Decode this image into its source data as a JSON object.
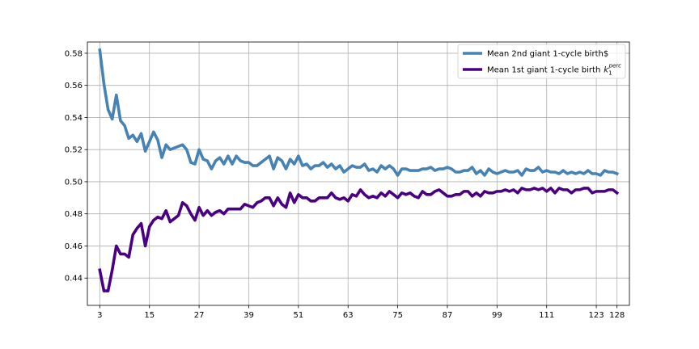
{
  "chart_data": {
    "type": "line",
    "title": "",
    "xlabel": "",
    "ylabel": "",
    "xlim": [
      0,
      131
    ],
    "ylim": [
      0.423,
      0.587
    ],
    "grid": true,
    "legend_placement": "top-right",
    "x_ticks": [
      3,
      15,
      27,
      39,
      51,
      63,
      75,
      87,
      99,
      111,
      123,
      128
    ],
    "y_ticks": [
      0.44,
      0.46,
      0.48,
      0.5,
      0.52,
      0.54,
      0.56,
      0.58
    ],
    "x": [
      3,
      4,
      5,
      6,
      7,
      8,
      9,
      10,
      11,
      12,
      13,
      14,
      15,
      16,
      17,
      18,
      19,
      20,
      21,
      22,
      23,
      24,
      25,
      26,
      27,
      28,
      29,
      30,
      31,
      32,
      33,
      34,
      35,
      36,
      37,
      38,
      39,
      40,
      41,
      42,
      43,
      44,
      45,
      46,
      47,
      48,
      49,
      50,
      51,
      52,
      53,
      54,
      55,
      56,
      57,
      58,
      59,
      60,
      61,
      62,
      63,
      64,
      65,
      66,
      67,
      68,
      69,
      70,
      71,
      72,
      73,
      74,
      75,
      76,
      77,
      78,
      79,
      80,
      81,
      82,
      83,
      84,
      85,
      86,
      87,
      88,
      89,
      90,
      91,
      92,
      93,
      94,
      95,
      96,
      97,
      98,
      99,
      100,
      101,
      102,
      103,
      104,
      105,
      106,
      107,
      108,
      109,
      110,
      111,
      112,
      113,
      114,
      115,
      116,
      117,
      118,
      119,
      120,
      121,
      122,
      123,
      124,
      125,
      126,
      127,
      128
    ],
    "series": [
      {
        "name": "Mean 2nd giant 1-cycle birth$",
        "color": "#4682b4",
        "values": [
          0.582,
          0.561,
          0.545,
          0.539,
          0.554,
          0.538,
          0.535,
          0.527,
          0.529,
          0.525,
          0.53,
          0.519,
          0.525,
          0.531,
          0.526,
          0.515,
          0.523,
          0.52,
          0.521,
          0.522,
          0.523,
          0.52,
          0.512,
          0.511,
          0.52,
          0.514,
          0.513,
          0.508,
          0.513,
          0.515,
          0.511,
          0.516,
          0.511,
          0.516,
          0.513,
          0.512,
          0.512,
          0.51,
          0.51,
          0.512,
          0.514,
          0.516,
          0.508,
          0.515,
          0.513,
          0.508,
          0.514,
          0.511,
          0.516,
          0.51,
          0.511,
          0.508,
          0.51,
          0.51,
          0.512,
          0.509,
          0.511,
          0.508,
          0.51,
          0.506,
          0.508,
          0.51,
          0.509,
          0.509,
          0.511,
          0.507,
          0.508,
          0.506,
          0.51,
          0.508,
          0.51,
          0.508,
          0.504,
          0.508,
          0.508,
          0.507,
          0.507,
          0.507,
          0.508,
          0.508,
          0.509,
          0.507,
          0.508,
          0.508,
          0.509,
          0.508,
          0.506,
          0.506,
          0.507,
          0.507,
          0.509,
          0.505,
          0.507,
          0.504,
          0.508,
          0.506,
          0.505,
          0.506,
          0.507,
          0.506,
          0.506,
          0.507,
          0.504,
          0.508,
          0.507,
          0.507,
          0.509,
          0.506,
          0.507,
          0.506,
          0.506,
          0.505,
          0.507,
          0.505,
          0.506,
          0.505,
          0.506,
          0.505,
          0.507,
          0.505,
          0.505,
          0.504,
          0.507,
          0.506,
          0.506,
          0.505
        ]
      },
      {
        "name": "Mean 1st giant 1-cycle birth",
        "name_math_symbol": "k",
        "name_math_sub": "1",
        "name_math_sup": "perc",
        "color": "#4b0082",
        "values": [
          0.445,
          0.432,
          0.432,
          0.445,
          0.46,
          0.455,
          0.455,
          0.453,
          0.467,
          0.471,
          0.474,
          0.46,
          0.472,
          0.476,
          0.478,
          0.477,
          0.482,
          0.475,
          0.477,
          0.479,
          0.487,
          0.485,
          0.48,
          0.476,
          0.484,
          0.479,
          0.482,
          0.479,
          0.481,
          0.482,
          0.48,
          0.483,
          0.483,
          0.483,
          0.483,
          0.486,
          0.485,
          0.484,
          0.487,
          0.488,
          0.49,
          0.49,
          0.485,
          0.49,
          0.486,
          0.484,
          0.493,
          0.487,
          0.492,
          0.49,
          0.49,
          0.488,
          0.488,
          0.49,
          0.49,
          0.49,
          0.493,
          0.49,
          0.489,
          0.49,
          0.488,
          0.492,
          0.491,
          0.495,
          0.492,
          0.49,
          0.491,
          0.49,
          0.493,
          0.491,
          0.494,
          0.492,
          0.49,
          0.493,
          0.492,
          0.493,
          0.491,
          0.49,
          0.494,
          0.492,
          0.492,
          0.494,
          0.495,
          0.493,
          0.491,
          0.491,
          0.492,
          0.492,
          0.494,
          0.494,
          0.491,
          0.493,
          0.491,
          0.494,
          0.493,
          0.493,
          0.494,
          0.494,
          0.495,
          0.494,
          0.495,
          0.493,
          0.496,
          0.495,
          0.495,
          0.496,
          0.495,
          0.496,
          0.494,
          0.496,
          0.493,
          0.496,
          0.495,
          0.495,
          0.493,
          0.495,
          0.495,
          0.496,
          0.496,
          0.493,
          0.494,
          0.494,
          0.494,
          0.495,
          0.495,
          0.493
        ]
      }
    ]
  }
}
